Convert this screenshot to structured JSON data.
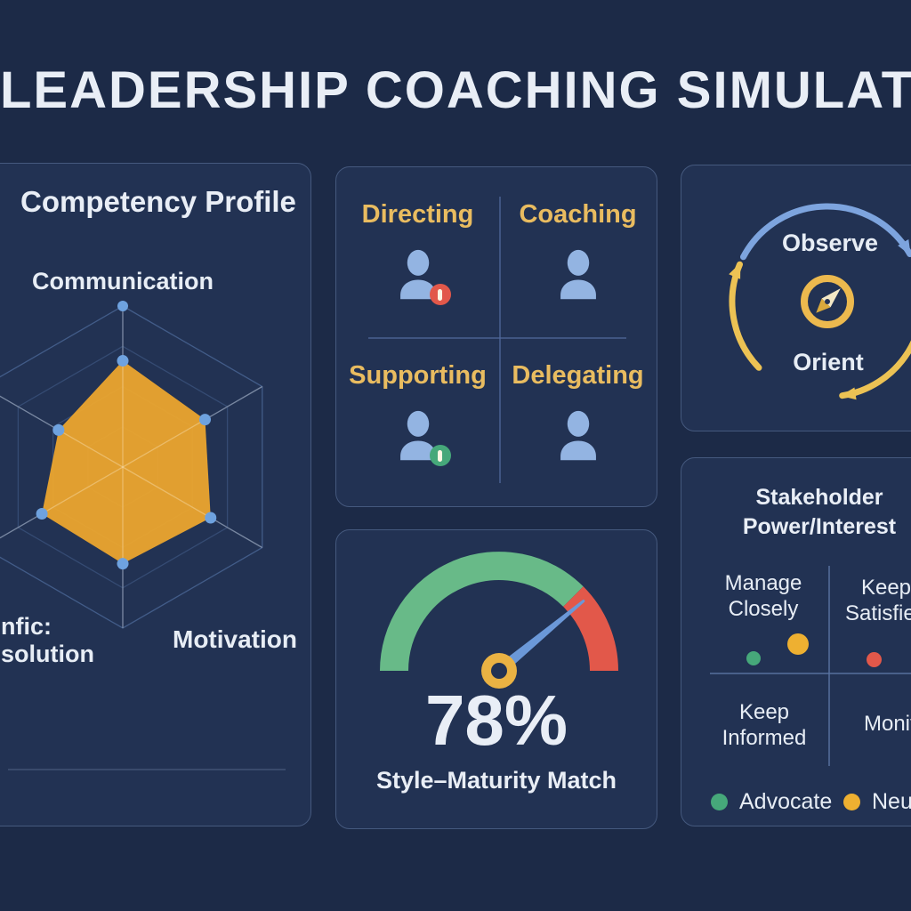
{
  "title": "LEADERSHIP COACHING SIMULATOR",
  "colors": {
    "background": "#1c2a47",
    "card": "#223253",
    "card_border": "#45597e",
    "title_text": "#e9eef6",
    "text_white": "#e7edf5",
    "gold": "#e9bc60",
    "radar_fill": "#f0a82d",
    "radar_dot": "#6ea2df",
    "grid_line": "#46608e",
    "person_blue": "#93b4e2",
    "alert_red": "#e2584a",
    "ok_green": "#46a87a",
    "gauge_green": "#68ba88",
    "gauge_red": "#e2584a",
    "needle_blue": "#6b98d8",
    "hub_yellow": "#eab243",
    "arc_blue": "#7da4de",
    "arc_yellow": "#ecc254"
  },
  "panels": {
    "competency": {
      "heading": "Competency Profile",
      "axis_label_top": "Communication",
      "axis_label_bottom_right": "Motivation",
      "axis_label_bottom_left_line1": "nfic:",
      "axis_label_bottom_left_line2": "solution"
    },
    "styles": {
      "quadrants": [
        {
          "label": "Directing",
          "badge": "red-alert"
        },
        {
          "label": "Coaching",
          "badge": null
        },
        {
          "label": "Supporting",
          "badge": "green-ok"
        },
        {
          "label": "Delegating",
          "badge": null
        }
      ]
    },
    "ooda": {
      "top_label": "Observe",
      "bottom_label": "Orient",
      "center_icon": "compass-icon"
    },
    "gauge": {
      "value_label": "78%",
      "caption": "Style–Maturity Match"
    },
    "stakeholder": {
      "heading_line1": "Stakeholder",
      "heading_line2": "Power/Interest",
      "quadrants": [
        {
          "label": "Manage Closely"
        },
        {
          "label": "Keep Satisfied"
        },
        {
          "label": "Keep Informed"
        },
        {
          "label": "Monitor"
        }
      ],
      "legend": [
        {
          "label": "Advocate",
          "color": "#46a87a"
        },
        {
          "label": "Neutral",
          "color": "#eeb031"
        }
      ]
    }
  },
  "chart_data": [
    {
      "type": "radar",
      "title": "Competency Profile",
      "axes": [
        "Communication",
        "",
        "Motivation",
        "",
        "nfic: solution",
        ""
      ],
      "values": [
        0.66,
        0.59,
        0.63,
        0.6,
        0.58,
        0.46
      ],
      "value_scale": [
        0,
        1
      ],
      "rings": [
        0.25,
        0.5,
        0.75,
        1
      ],
      "fill_color": "#f0a82d",
      "dot_color": "#6ea2df"
    },
    {
      "type": "gauge",
      "value": 78,
      "value_label": "78%",
      "label": "Style–Maturity Match",
      "min": 0,
      "max": 100,
      "zones": [
        {
          "from": 0,
          "to": 75,
          "color": "#68ba88"
        },
        {
          "from": 75,
          "to": 100,
          "color": "#e2584a"
        }
      ]
    },
    {
      "type": "scatter",
      "title": "Stakeholder Power/Interest",
      "quadrant_labels": [
        "Manage Closely",
        "Keep Satisfied",
        "Keep Informed",
        "Monitor"
      ],
      "legend": [
        {
          "label": "Advocate",
          "color": "#46a87a"
        },
        {
          "label": "Neutral",
          "color": "#eeb031"
        }
      ],
      "points": [
        {
          "color": "#46a87a",
          "x": 0.16,
          "y": 0.46,
          "r": 8
        },
        {
          "color": "#eeb031",
          "x": 0.32,
          "y": 0.39,
          "r": 12
        },
        {
          "color": "#e2584a",
          "x": 0.6,
          "y": 0.47,
          "r": 8.5
        }
      ]
    }
  ]
}
